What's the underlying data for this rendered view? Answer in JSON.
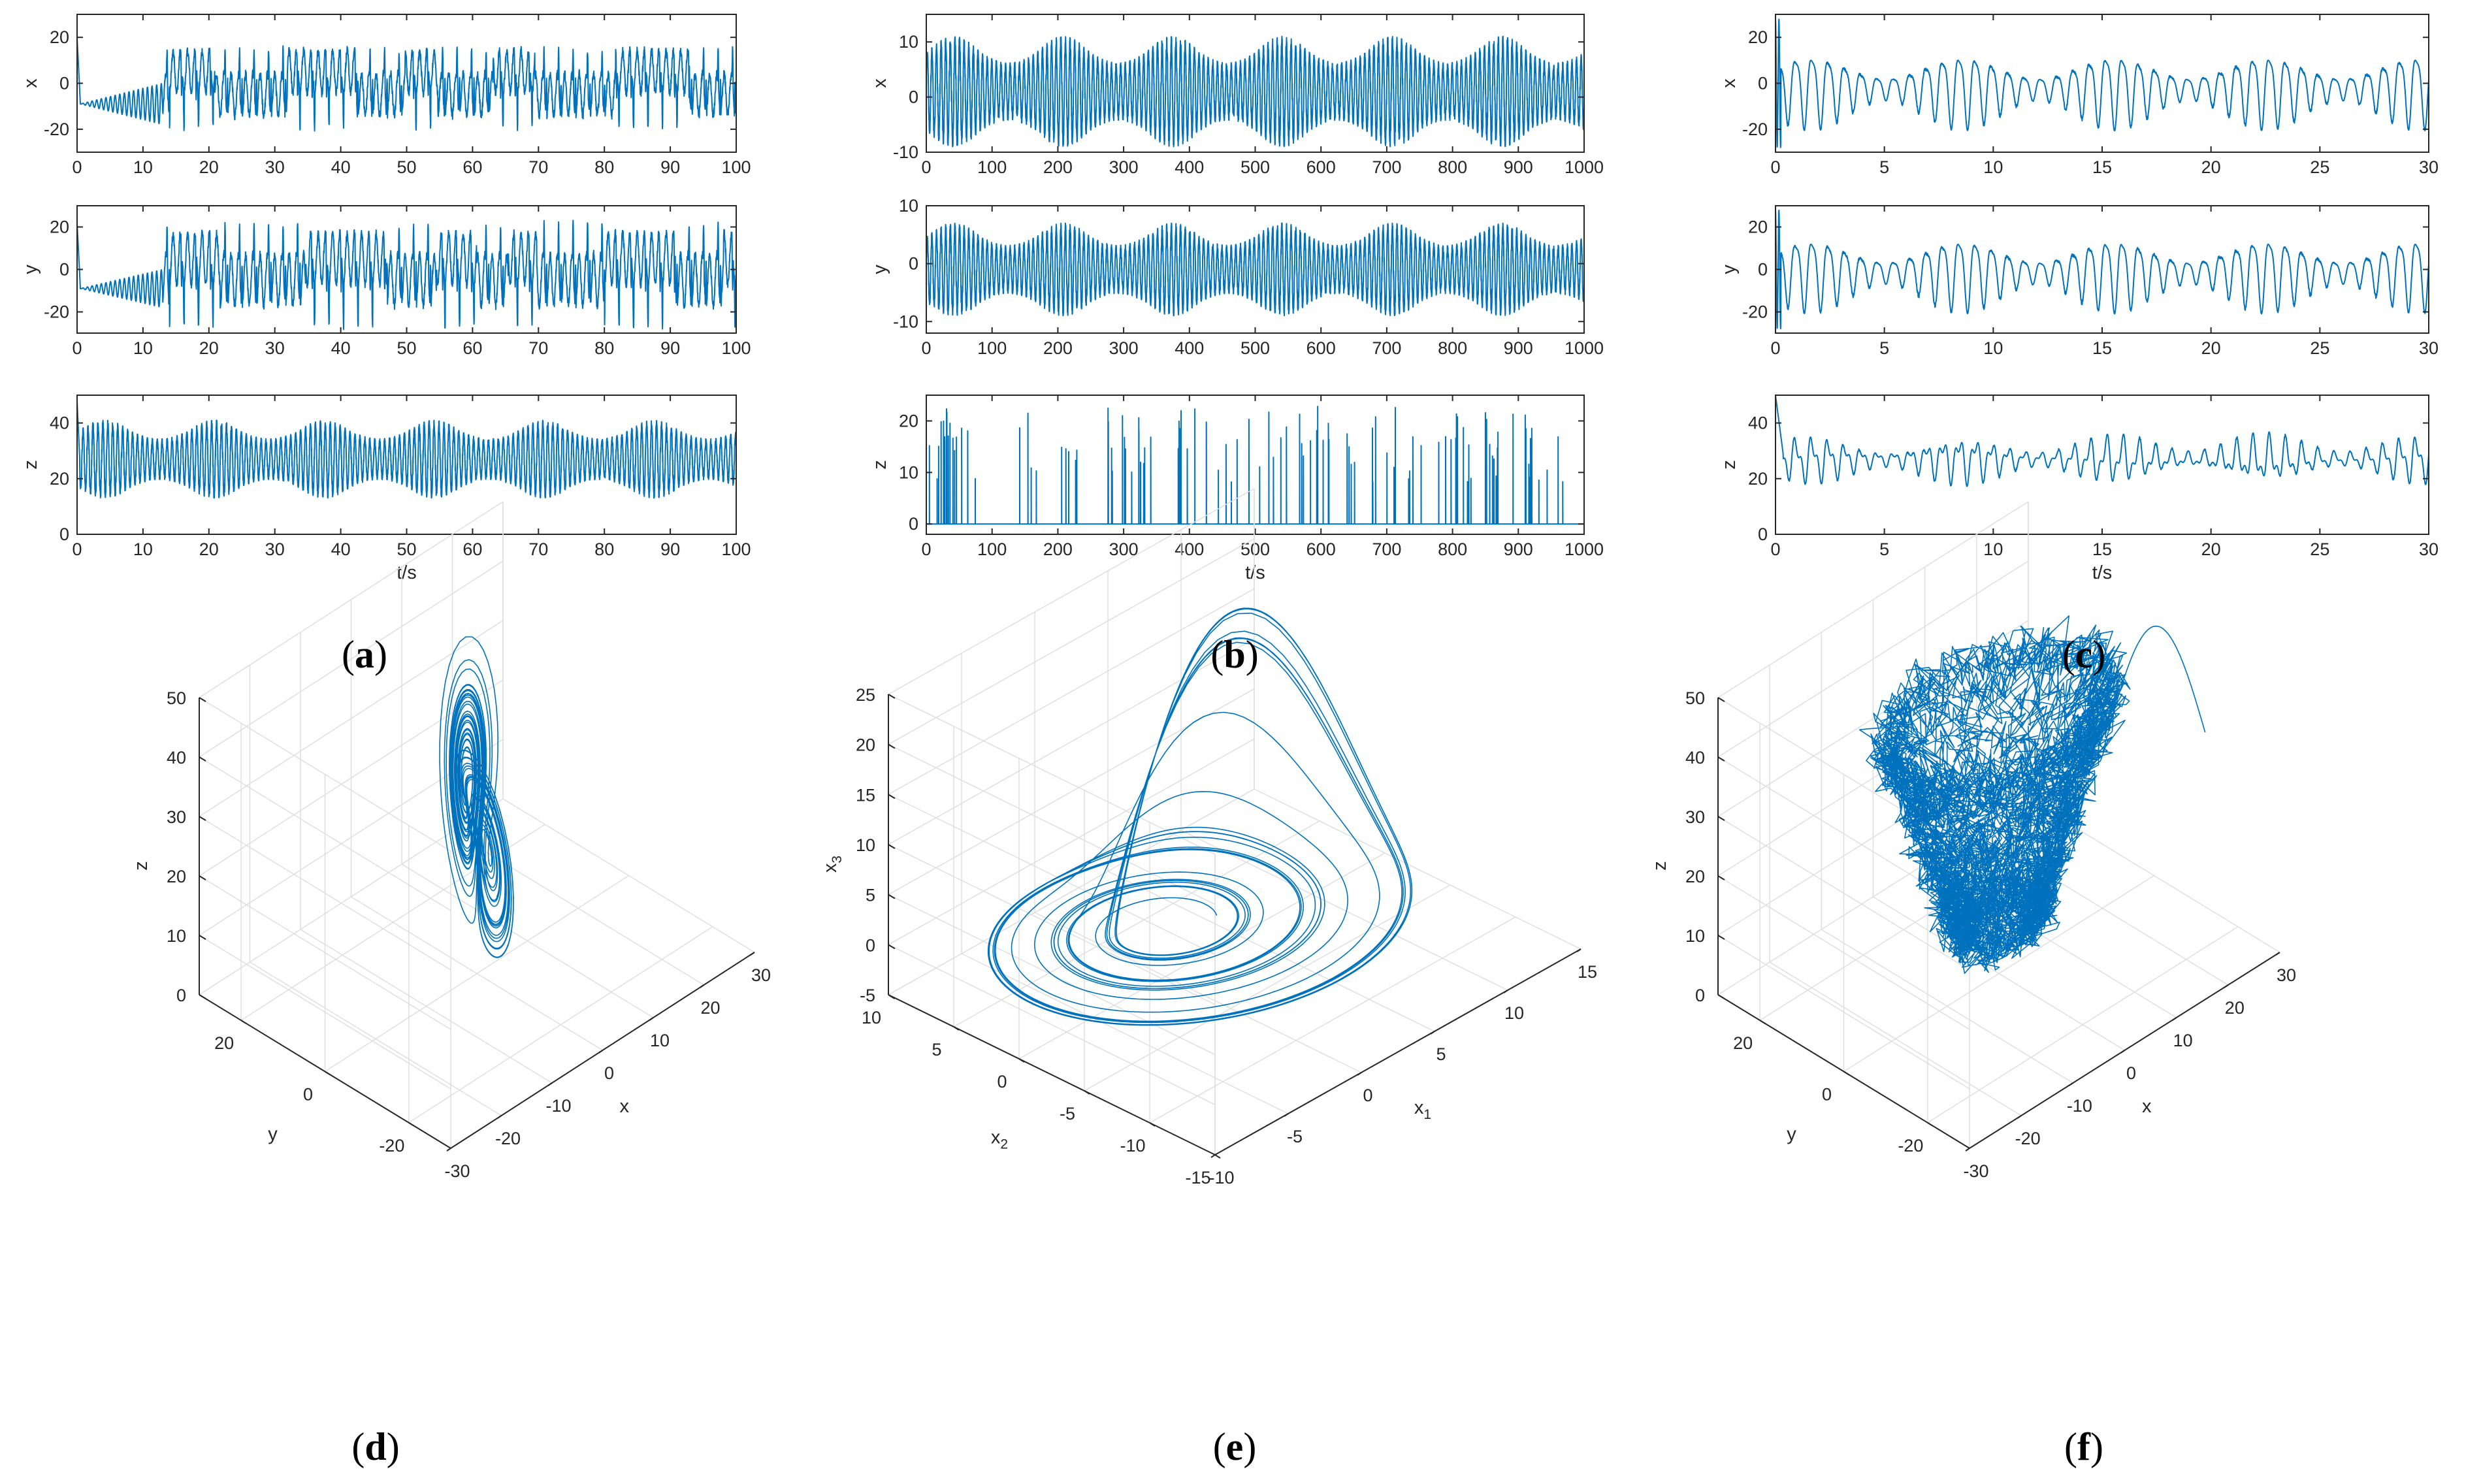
{
  "colors": {
    "series": "#0072BD",
    "axis": "#262626",
    "grid": "#dfdfdf",
    "background": "#ffffff"
  },
  "panels": [
    {
      "id": "a",
      "label_prefix": "(",
      "label_letter": "a",
      "label_suffix": ")"
    },
    {
      "id": "b",
      "label_prefix": "(",
      "label_letter": "b",
      "label_suffix": ")"
    },
    {
      "id": "c",
      "label_prefix": "(",
      "label_letter": "c",
      "label_suffix": ")"
    },
    {
      "id": "d",
      "label_prefix": "(",
      "label_letter": "d",
      "label_suffix": ")"
    },
    {
      "id": "e",
      "label_prefix": "(",
      "label_letter": "e",
      "label_suffix": ")"
    },
    {
      "id": "f",
      "label_prefix": "(",
      "label_letter": "f",
      "label_suffix": ")"
    }
  ],
  "chart_data": [
    {
      "id": "a-x",
      "panel": "a",
      "type": "line",
      "ylabel": "x",
      "xlabel": "",
      "xlim": [
        0,
        100
      ],
      "ylim": [
        -30,
        30
      ],
      "xticks": [
        0,
        10,
        20,
        30,
        40,
        50,
        60,
        70,
        80,
        90,
        100
      ],
      "yticks": [
        -20,
        0,
        20
      ],
      "series": [
        {
          "kind": "lorenz-switching",
          "component": "x",
          "t_end": 100,
          "transient_level": -9,
          "transient_until": 13,
          "osc_amplitude": 15,
          "dominant_period": 1.1
        }
      ]
    },
    {
      "id": "a-y",
      "panel": "a",
      "type": "line",
      "ylabel": "y",
      "xlabel": "",
      "xlim": [
        0,
        100
      ],
      "ylim": [
        -30,
        30
      ],
      "xticks": [
        0,
        10,
        20,
        30,
        40,
        50,
        60,
        70,
        80,
        90,
        100
      ],
      "yticks": [
        -20,
        0,
        20
      ],
      "series": [
        {
          "kind": "lorenz-switching",
          "component": "y",
          "t_end": 100,
          "transient_level": -9,
          "transient_until": 13,
          "osc_amplitude": 20,
          "dominant_period": 1.1
        }
      ]
    },
    {
      "id": "a-z",
      "panel": "a",
      "type": "line",
      "ylabel": "z",
      "xlabel": "t/s",
      "xlim": [
        0,
        100
      ],
      "ylim": [
        0,
        50
      ],
      "xticks": [
        0,
        10,
        20,
        30,
        40,
        50,
        60,
        70,
        80,
        90,
        100
      ],
      "yticks": [
        0,
        20,
        40
      ],
      "series": [
        {
          "kind": "dense-oscillation",
          "component": "z",
          "t_end": 100,
          "center": 27,
          "amplitude": 14,
          "period": 0.75
        }
      ]
    },
    {
      "id": "b-x",
      "panel": "b",
      "type": "line",
      "ylabel": "x",
      "xlabel": "",
      "xlim": [
        0,
        1000
      ],
      "ylim": [
        -10,
        15
      ],
      "xticks": [
        0,
        100,
        200,
        300,
        400,
        500,
        600,
        700,
        800,
        900,
        1000
      ],
      "yticks": [
        -10,
        0,
        10
      ],
      "series": [
        {
          "kind": "dense-oscillation",
          "component": "x",
          "t_end": 1000,
          "center": 1,
          "amplitude": 10,
          "period": 7
        }
      ]
    },
    {
      "id": "b-y",
      "panel": "b",
      "type": "line",
      "ylabel": "y",
      "xlabel": "",
      "xlim": [
        0,
        1000
      ],
      "ylim": [
        -12,
        10
      ],
      "xticks": [
        0,
        100,
        200,
        300,
        400,
        500,
        600,
        700,
        800,
        900,
        1000
      ],
      "yticks": [
        -10,
        0,
        10
      ],
      "series": [
        {
          "kind": "dense-oscillation",
          "component": "y",
          "t_end": 1000,
          "center": -1,
          "amplitude": 8,
          "period": 7
        }
      ]
    },
    {
      "id": "b-z",
      "panel": "b",
      "type": "line",
      "ylabel": "z",
      "xlabel": "t/s",
      "xlim": [
        0,
        1000
      ],
      "ylim": [
        -2,
        25
      ],
      "xticks": [
        0,
        100,
        200,
        300,
        400,
        500,
        600,
        700,
        800,
        900,
        1000
      ],
      "yticks": [
        0,
        10,
        20
      ],
      "series": [
        {
          "kind": "spikes",
          "component": "z",
          "t_end": 1000,
          "baseline": 0,
          "spike_max": 23,
          "spike_min": 8,
          "spike_count": 110
        }
      ]
    },
    {
      "id": "c-x",
      "panel": "c",
      "type": "line",
      "ylabel": "x",
      "xlabel": "",
      "xlim": [
        0,
        30
      ],
      "ylim": [
        -30,
        30
      ],
      "xticks": [
        0,
        5,
        10,
        15,
        20,
        25,
        30
      ],
      "yticks": [
        -20,
        0,
        20
      ],
      "series": [
        {
          "kind": "irregular-oscillation",
          "component": "x",
          "t_end": 30,
          "center": -2,
          "amplitude": 15,
          "period": 0.75
        }
      ]
    },
    {
      "id": "c-y",
      "panel": "c",
      "type": "line",
      "ylabel": "y",
      "xlabel": "",
      "xlim": [
        0,
        30
      ],
      "ylim": [
        -30,
        30
      ],
      "xticks": [
        0,
        5,
        10,
        15,
        20,
        25,
        30
      ],
      "yticks": [
        -20,
        0,
        20
      ],
      "series": [
        {
          "kind": "irregular-oscillation",
          "component": "y",
          "t_end": 30,
          "center": -1,
          "amplitude": 16,
          "period": 0.75
        }
      ]
    },
    {
      "id": "c-z",
      "panel": "c",
      "type": "line",
      "ylabel": "z",
      "xlabel": "t/s",
      "xlim": [
        0,
        30
      ],
      "ylim": [
        0,
        50
      ],
      "xticks": [
        0,
        5,
        10,
        15,
        20,
        25,
        30
      ],
      "yticks": [
        0,
        20,
        40
      ],
      "series": [
        {
          "kind": "irregular-oscillation",
          "component": "z",
          "t_end": 30,
          "center": 27,
          "amplitude": 9,
          "period": 0.75
        }
      ]
    },
    {
      "id": "d-3d",
      "panel": "d",
      "type": "line3d",
      "xlabel": "x",
      "ylabel": "y",
      "zlabel": "z",
      "xlim": [
        -30,
        30
      ],
      "ylim": [
        -30,
        30
      ],
      "zlim": [
        0,
        50
      ],
      "xticks": [
        -30,
        -20,
        -10,
        0,
        10,
        20,
        30
      ],
      "yticks": [
        -20,
        0,
        20
      ],
      "zticks": [
        0,
        10,
        20,
        30,
        40,
        50
      ],
      "xtick_labels": [
        "-30",
        "-20",
        "-10",
        "0",
        "10",
        "20",
        "30"
      ],
      "ytick_labels": [
        "-20",
        "0",
        "20"
      ],
      "ztick_labels": [
        "0",
        "10",
        "20",
        "30",
        "40",
        "50"
      ],
      "series": [
        {
          "kind": "lorenz-butterfly",
          "x_range": [
            -20,
            20
          ],
          "y_range": [
            -25,
            25
          ],
          "z_range": [
            3,
            48
          ]
        }
      ]
    },
    {
      "id": "e-3d",
      "panel": "e",
      "type": "line3d",
      "xlabel": "x",
      "xlabel_sub": "1",
      "ylabel": "x",
      "ylabel_sub": "2",
      "zlabel": "x",
      "zlabel_sub": "3",
      "xlim": [
        -10,
        15
      ],
      "ylim": [
        -15,
        10
      ],
      "zlim": [
        -5,
        25
      ],
      "xticks": [
        -10,
        -5,
        0,
        5,
        10,
        15
      ],
      "yticks": [
        -15,
        -10,
        -5,
        0,
        5,
        10
      ],
      "zticks": [
        -5,
        0,
        5,
        10,
        15,
        20,
        25
      ],
      "xtick_labels": [
        "-10",
        "-5",
        "0",
        "5",
        "10",
        "15"
      ],
      "ytick_labels": [
        "-15",
        "-10",
        "-5",
        "0",
        "5",
        "10"
      ],
      "ztick_labels": [
        "-5",
        "0",
        "5",
        "10",
        "15",
        "20",
        "25"
      ],
      "series": [
        {
          "kind": "rossler-funnel",
          "x_range": [
            -10,
            12
          ],
          "y_range": [
            -11,
            8
          ],
          "z_range": [
            0,
            24
          ]
        }
      ]
    },
    {
      "id": "f-3d",
      "panel": "f",
      "type": "line3d",
      "xlabel": "x",
      "ylabel": "y",
      "zlabel": "z",
      "xlim": [
        -30,
        30
      ],
      "ylim": [
        -30,
        30
      ],
      "zlim": [
        0,
        50
      ],
      "xticks": [
        -30,
        -20,
        -10,
        0,
        10,
        20,
        30
      ],
      "yticks": [
        -20,
        0,
        20
      ],
      "zticks": [
        0,
        10,
        20,
        30,
        40,
        50
      ],
      "xtick_labels": [
        "-30",
        "-20",
        "-10",
        "0",
        "10",
        "20",
        "30"
      ],
      "ytick_labels": [
        "-20",
        "0",
        "20"
      ],
      "ztick_labels": [
        "0",
        "10",
        "20",
        "30",
        "40",
        "50"
      ],
      "series": [
        {
          "kind": "tangled-cone",
          "x_range": [
            -20,
            20
          ],
          "y_range": [
            -20,
            20
          ],
          "z_range": [
            0,
            50
          ]
        }
      ]
    }
  ]
}
